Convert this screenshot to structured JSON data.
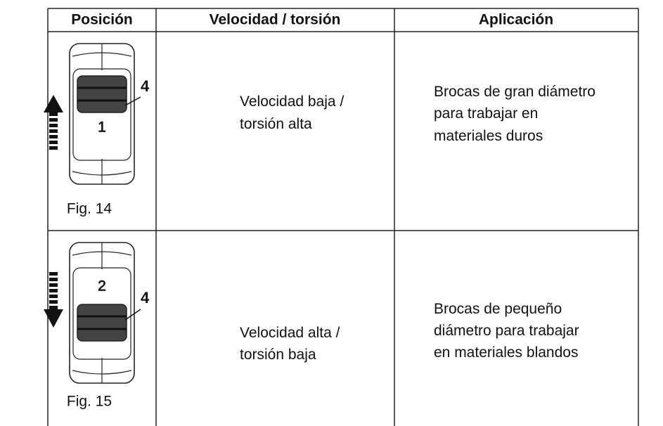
{
  "table": {
    "header": [
      "Posición",
      "Velocidad / torsión",
      "Aplicación"
    ],
    "rows": [
      {
        "figure": {
          "position_number": "1",
          "callout": "4",
          "caption": "Fig. 14"
        },
        "speed": [
          "Velocidad baja /",
          "torsión alta"
        ],
        "application": [
          "Brocas de gran diámetro",
          "para trabajar en",
          "materiales duros"
        ]
      },
      {
        "figure": {
          "position_number": "2",
          "callout": "4",
          "caption": "Fig. 15"
        },
        "speed": [
          "Velocidad alta /",
          "torsión baja"
        ],
        "application": [
          "Brocas de pequeño",
          "diámetro para trabajar",
          "en materiales blandos"
        ]
      }
    ]
  }
}
